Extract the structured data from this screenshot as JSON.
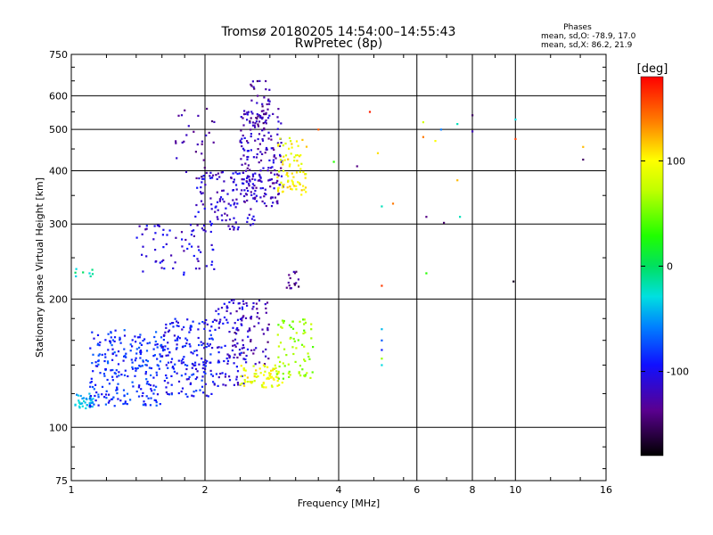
{
  "chart_data": {
    "type": "scatter",
    "title": "Tromsø 20180205 14:54:00–14:55:43",
    "subtitle": "RwPretec (8p)",
    "xlabel": "Frequency [MHz]",
    "ylabel": "Stationary phase Virtual Height [km]",
    "x_scale": "log",
    "y_scale": "log",
    "xlim": [
      1,
      16
    ],
    "ylim": [
      75,
      750
    ],
    "grid": true,
    "x_ticks": [
      1,
      2,
      4,
      6,
      8,
      10,
      16
    ],
    "x_ticklabels": [
      "1",
      "2",
      "4",
      "6",
      "8",
      "10",
      "16"
    ],
    "y_ticks": [
      75,
      100,
      200,
      300,
      400,
      500,
      600,
      750
    ],
    "y_ticklabels": [
      "75",
      "100",
      "200",
      "300",
      "400",
      "500",
      "600",
      "750"
    ],
    "stats": {
      "heading": "Phases",
      "line_o": "mean, sd,O: -78.9, 17.0",
      "line_x": "mean, sd,X: 86.2, 21.9"
    },
    "colorbar": {
      "label": "[deg]",
      "range": [
        -180,
        180
      ],
      "ticks": [
        100,
        0,
        -100
      ],
      "ticklabels": [
        "100",
        "0",
        "-100"
      ]
    },
    "clusters": [
      {
        "f_min": 1.02,
        "f_max": 1.12,
        "h_min": 110,
        "h_max": 120,
        "phase": -40,
        "n": 40
      },
      {
        "f_min": 1.1,
        "f_max": 1.6,
        "h_min": 112,
        "h_max": 170,
        "phase": -85,
        "n": 240
      },
      {
        "f_min": 1.6,
        "f_max": 2.1,
        "h_min": 118,
        "h_max": 180,
        "phase": -95,
        "n": 180
      },
      {
        "f_min": 2.1,
        "f_max": 2.5,
        "h_min": 125,
        "h_max": 200,
        "phase": -105,
        "n": 100
      },
      {
        "f_min": 2.3,
        "f_max": 2.8,
        "h_min": 140,
        "h_max": 200,
        "phase": -125,
        "n": 60
      },
      {
        "f_min": 2.4,
        "f_max": 3.0,
        "h_min": 124,
        "h_max": 140,
        "phase": 95,
        "n": 70
      },
      {
        "f_min": 2.9,
        "f_max": 3.5,
        "h_min": 130,
        "h_max": 180,
        "phase": 60,
        "n": 70
      },
      {
        "f_min": 1.4,
        "f_max": 2.1,
        "h_min": 228,
        "h_max": 300,
        "phase": -110,
        "n": 70
      },
      {
        "f_min": 1.9,
        "f_max": 2.6,
        "h_min": 290,
        "h_max": 400,
        "phase": -110,
        "n": 120
      },
      {
        "f_min": 2.4,
        "f_max": 3.0,
        "h_min": 330,
        "h_max": 560,
        "phase": -120,
        "n": 190
      },
      {
        "f_min": 2.5,
        "f_max": 2.8,
        "h_min": 500,
        "h_max": 650,
        "phase": -130,
        "n": 40
      },
      {
        "f_min": 1.7,
        "f_max": 2.1,
        "h_min": 380,
        "h_max": 560,
        "phase": -130,
        "n": 30
      },
      {
        "f_min": 2.9,
        "f_max": 3.4,
        "h_min": 350,
        "h_max": 480,
        "phase": 100,
        "n": 80
      },
      {
        "f_min": 3.05,
        "f_max": 3.25,
        "h_min": 212,
        "h_max": 232,
        "phase": -135,
        "n": 15
      },
      {
        "f_min": 1.02,
        "f_max": 1.12,
        "h_min": 226,
        "h_max": 236,
        "phase": -20,
        "n": 8
      }
    ],
    "scattered_points": [
      [
        4.4,
        410,
        -140
      ],
      [
        4.7,
        550,
        170
      ],
      [
        4.9,
        440,
        110
      ],
      [
        5.0,
        330,
        -20
      ],
      [
        5.3,
        335,
        140
      ],
      [
        5.0,
        215,
        160
      ],
      [
        5.0,
        170,
        -40
      ],
      [
        5.0,
        160,
        -70
      ],
      [
        5.0,
        152,
        -90
      ],
      [
        5.0,
        145,
        60
      ],
      [
        5.0,
        140,
        -30
      ],
      [
        6.2,
        520,
        80
      ],
      [
        6.2,
        480,
        140
      ],
      [
        6.3,
        312,
        -140
      ],
      [
        6.3,
        230,
        30
      ],
      [
        6.9,
        302,
        -150
      ],
      [
        6.8,
        500,
        -60
      ],
      [
        7.4,
        515,
        -20
      ],
      [
        7.4,
        380,
        120
      ],
      [
        7.5,
        312,
        -20
      ],
      [
        8.0,
        540,
        -150
      ],
      [
        8.0,
        495,
        -120
      ],
      [
        10.0,
        528,
        -30
      ],
      [
        10.0,
        475,
        160
      ],
      [
        9.9,
        220,
        -170
      ],
      [
        14.2,
        455,
        120
      ],
      [
        14.2,
        425,
        -150
      ],
      [
        3.6,
        500,
        150
      ],
      [
        3.9,
        420,
        30
      ],
      [
        6.6,
        470,
        100
      ]
    ]
  }
}
